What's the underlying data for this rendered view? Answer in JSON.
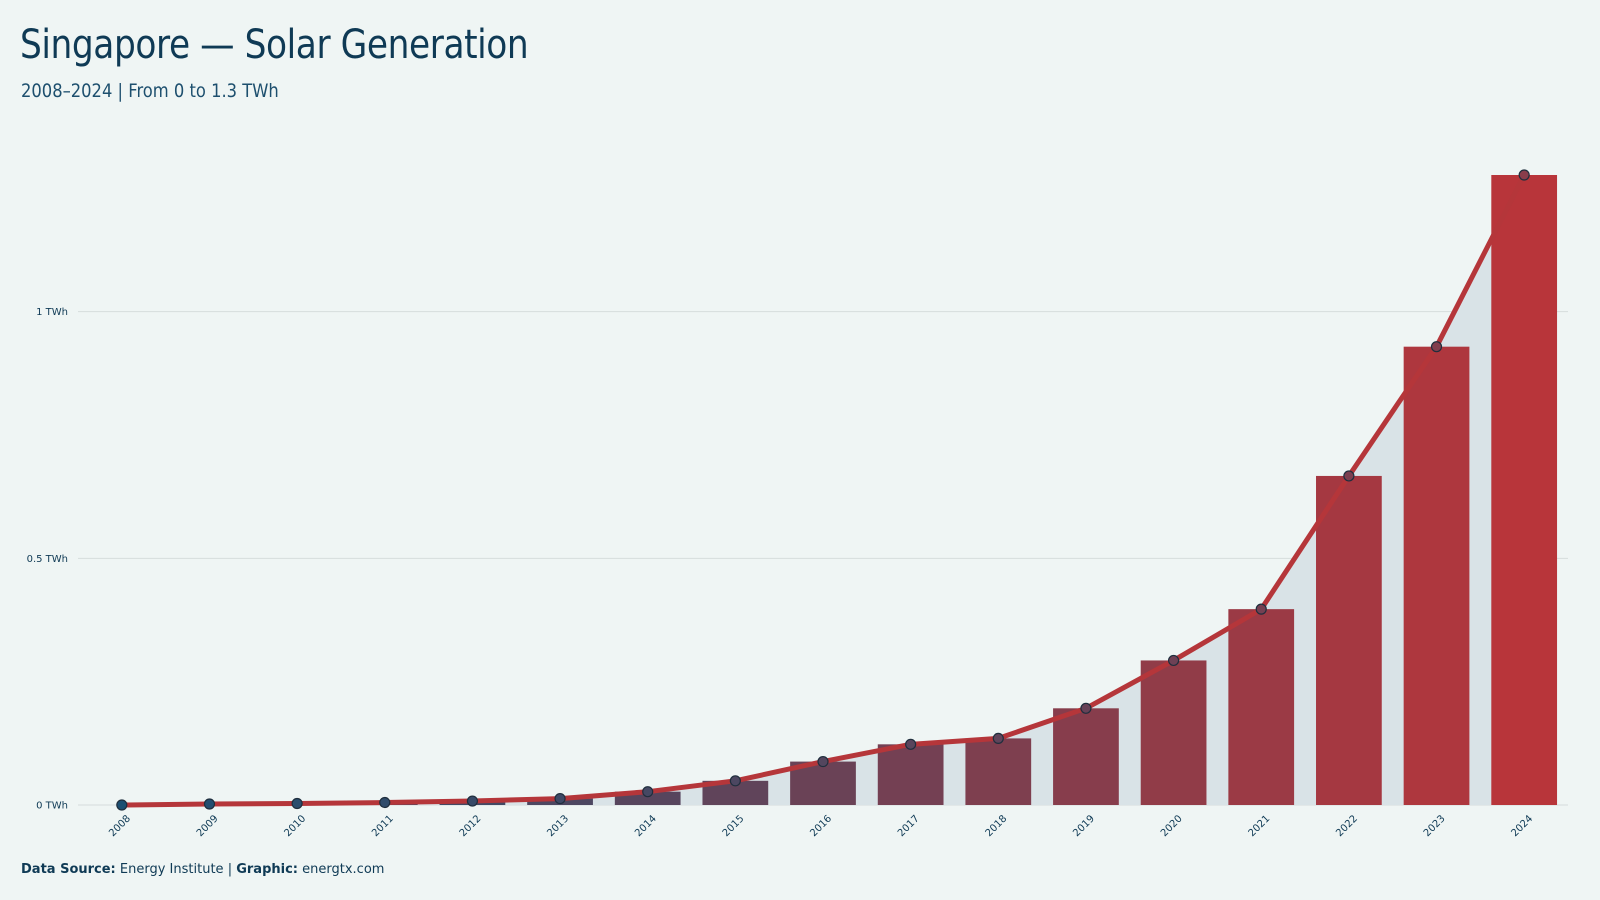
{
  "title": "Singapore — Solar Generation",
  "subtitle": "2008–2024 | From 0 to 1.3 TWh",
  "footer": {
    "source_label": "Data Source:",
    "source_value": "Energy Institute",
    "separator": "|",
    "graphic_label": "Graphic:",
    "graphic_value": "energtx.com"
  },
  "colors": {
    "background": "#eff5f4",
    "title": "#0f3a55",
    "line": "#b5363a",
    "area": "#d9e3e7",
    "bar_start": "#1c4f72",
    "bar_end": "#b8353a",
    "gridline": "#d6dcdc"
  },
  "chart_data": {
    "type": "bar",
    "title": "Singapore — Solar Generation",
    "subtitle": "2008–2024 | From 0 to 1.3 TWh",
    "xlabel": "",
    "ylabel": "",
    "categories": [
      "2008",
      "2009",
      "2010",
      "2011",
      "2012",
      "2013",
      "2014",
      "2015",
      "2016",
      "2017",
      "2018",
      "2019",
      "2020",
      "2021",
      "2022",
      "2023",
      "2024"
    ],
    "values": [
      0.0,
      0.002,
      0.003,
      0.005,
      0.008,
      0.013,
      0.027,
      0.049,
      0.088,
      0.123,
      0.135,
      0.196,
      0.293,
      0.397,
      0.667,
      0.929,
      1.277
    ],
    "overlay": {
      "type": "line+area",
      "values_same_as_bars": true,
      "markers": true
    },
    "y_ticks": [
      {
        "value": 0,
        "label": "0 TWh"
      },
      {
        "value": 0.5,
        "label": "0.5 TWh"
      },
      {
        "value": 1,
        "label": "1 TWh"
      }
    ],
    "ylim": [
      0,
      1.35
    ],
    "grid": "horizontal",
    "legend": "none"
  }
}
